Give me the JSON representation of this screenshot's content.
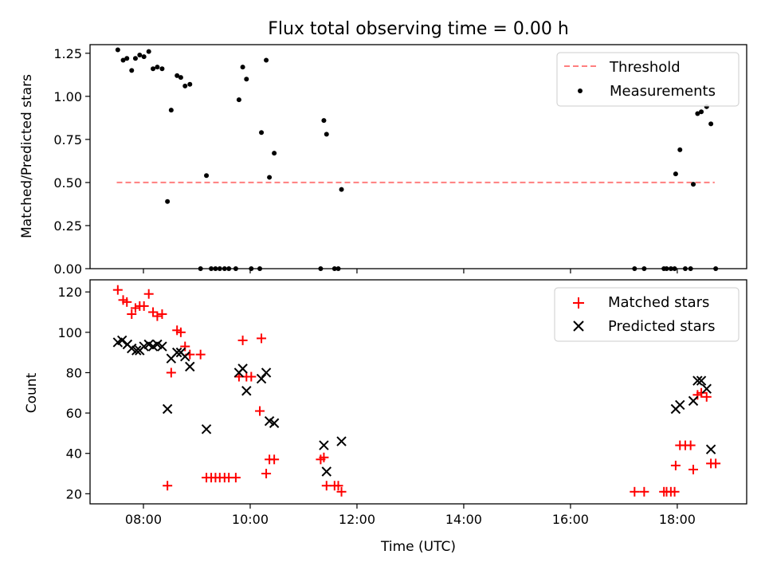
{
  "chart_data": [
    {
      "type": "scatter",
      "title": "Flux total observing time = 0.00 h",
      "xlabel": "",
      "ylabel": "Matched/Predicted stars",
      "xlim": [
        7.0,
        19.3
      ],
      "ylim": [
        0,
        1.3
      ],
      "x_ticks": [
        8,
        10,
        12,
        14,
        16,
        18
      ],
      "x_ticklabels": [],
      "y_ticks": [
        0.0,
        0.25,
        0.5,
        0.75,
        1.0,
        1.25
      ],
      "y_ticklabels": [
        "0.00",
        "0.25",
        "0.50",
        "0.75",
        "1.00",
        "1.25"
      ],
      "legend_position": "top-right",
      "threshold": {
        "name": "Threshold",
        "x": [
          7.5,
          18.7
        ],
        "y": 0.5,
        "color": "#ff7f7f",
        "style": "dashed"
      },
      "series": [
        {
          "name": "Measurements",
          "color": "#000000",
          "marker": "dot",
          "x": [
            7.52,
            7.62,
            7.69,
            7.78,
            7.85,
            7.93,
            8.01,
            8.1,
            8.18,
            8.26,
            8.35,
            8.45,
            8.52,
            8.63,
            8.7,
            8.78,
            8.87,
            9.07,
            9.18,
            9.27,
            9.35,
            9.43,
            9.52,
            9.6,
            9.73,
            9.79,
            9.86,
            9.93,
            10.02,
            10.18,
            10.21,
            10.3,
            10.36,
            10.45,
            11.32,
            11.38,
            11.43,
            11.58,
            11.65,
            11.71,
            17.2,
            17.38,
            17.75,
            17.8,
            17.88,
            17.95,
            17.97,
            18.05,
            18.15,
            18.25,
            18.3,
            18.38,
            18.45,
            18.55,
            18.63,
            18.72
          ],
          "y": [
            1.27,
            1.21,
            1.22,
            1.15,
            1.22,
            1.24,
            1.23,
            1.26,
            1.16,
            1.17,
            1.16,
            0.39,
            0.92,
            1.12,
            1.11,
            1.06,
            1.07,
            0.0,
            0.54,
            0.0,
            0.0,
            0.0,
            0.0,
            0.0,
            0.0,
            0.98,
            1.17,
            1.1,
            0.0,
            0.0,
            0.79,
            1.21,
            0.53,
            0.67,
            0.0,
            0.86,
            0.78,
            0.0,
            0.0,
            0.46,
            0.0,
            0.0,
            0.0,
            0.0,
            0.0,
            0.0,
            0.55,
            0.69,
            0.0,
            0.0,
            0.49,
            0.9,
            0.91,
            0.94,
            0.84,
            0.0
          ]
        }
      ]
    },
    {
      "type": "scatter",
      "title": "",
      "xlabel": "Time (UTC)",
      "ylabel": "Count",
      "xlim": [
        7.0,
        19.3
      ],
      "ylim": [
        15,
        126
      ],
      "x_ticks": [
        8,
        10,
        12,
        14,
        16,
        18
      ],
      "x_ticklabels": [
        "08:00",
        "10:00",
        "12:00",
        "14:00",
        "16:00",
        "18:00"
      ],
      "y_ticks": [
        20,
        40,
        60,
        80,
        100,
        120
      ],
      "y_ticklabels": [
        "20",
        "40",
        "60",
        "80",
        "100",
        "120"
      ],
      "legend_position": "top-right",
      "series": [
        {
          "name": "Matched stars",
          "color": "#ff0000",
          "marker": "plus",
          "x": [
            7.52,
            7.62,
            7.69,
            7.78,
            7.85,
            7.93,
            8.01,
            8.1,
            8.18,
            8.26,
            8.35,
            8.45,
            8.52,
            8.63,
            8.7,
            8.78,
            8.87,
            9.07,
            9.18,
            9.27,
            9.35,
            9.43,
            9.52,
            9.6,
            9.73,
            9.79,
            9.86,
            9.93,
            10.02,
            10.18,
            10.21,
            10.3,
            10.36,
            10.45,
            11.32,
            11.38,
            11.43,
            11.58,
            11.65,
            11.71,
            17.2,
            17.38,
            17.75,
            17.8,
            17.88,
            17.95,
            17.97,
            18.05,
            18.15,
            18.25,
            18.3,
            18.38,
            18.45,
            18.55,
            18.63,
            18.72
          ],
          "y": [
            121,
            116,
            115,
            109,
            112,
            113,
            113,
            119,
            110,
            108,
            109,
            24,
            80,
            101,
            100,
            93,
            89,
            89,
            28,
            28,
            28,
            28,
            28,
            28,
            28,
            78,
            96,
            78,
            78,
            61,
            97,
            30,
            37,
            37,
            37,
            38,
            24,
            24,
            24,
            21,
            21,
            21,
            21,
            21,
            21,
            21,
            34,
            44,
            44,
            44,
            32,
            69,
            70,
            68,
            35,
            35
          ]
        },
        {
          "name": "Predicted stars",
          "color": "#000000",
          "marker": "x",
          "x": [
            7.52,
            7.6,
            7.7,
            7.78,
            7.87,
            7.93,
            8.01,
            8.1,
            8.18,
            8.26,
            8.35,
            8.45,
            8.52,
            8.63,
            8.7,
            8.78,
            8.87,
            9.18,
            9.79,
            9.86,
            9.93,
            10.21,
            10.3,
            10.36,
            10.45,
            11.38,
            11.43,
            11.71,
            17.97,
            18.05,
            18.3,
            18.38,
            18.45,
            18.55,
            18.63
          ],
          "y": [
            95,
            96,
            94,
            92,
            91,
            91,
            93,
            94,
            93,
            94,
            93,
            62,
            87,
            90,
            90,
            88,
            83,
            52,
            80,
            82,
            71,
            77,
            80,
            56,
            55,
            44,
            31,
            46,
            62,
            64,
            66,
            76,
            76,
            72,
            42
          ]
        }
      ]
    }
  ]
}
